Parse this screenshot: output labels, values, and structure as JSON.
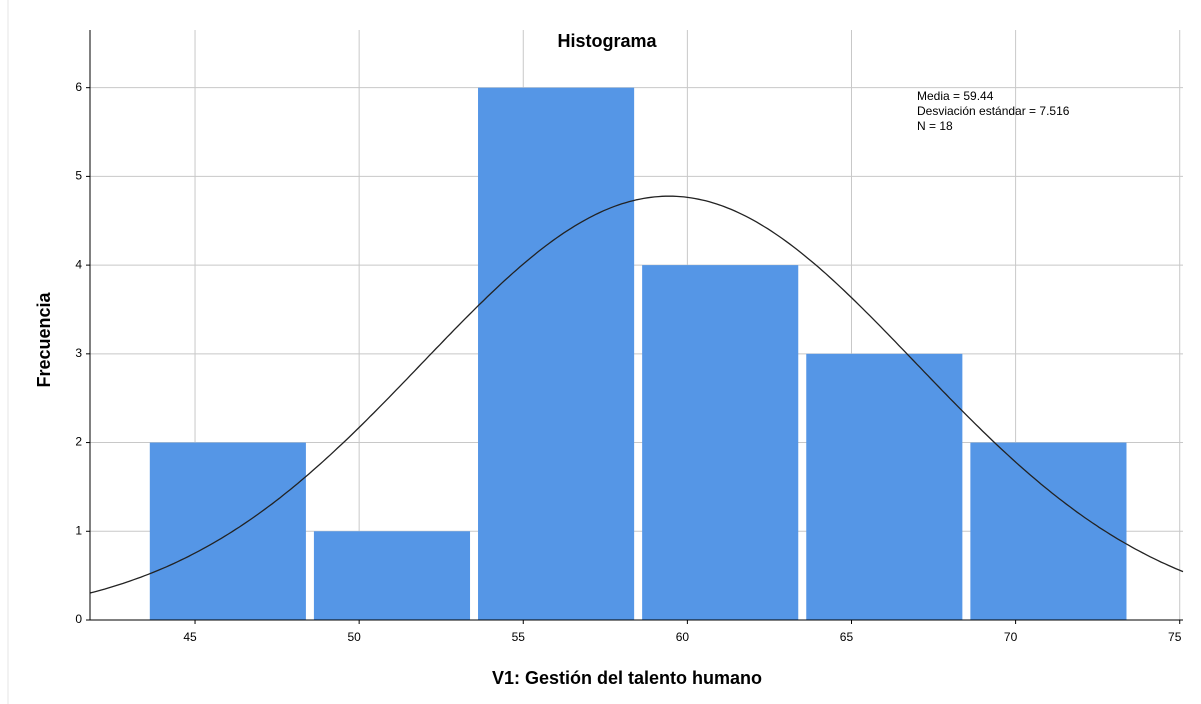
{
  "chart_data": {
    "type": "histogram",
    "title": "Histograma",
    "x_label": "V1: Gestión del talento humano",
    "y_label": "Frecuencia",
    "bins": [
      43.5,
      48.5,
      53.5,
      58.5,
      63.5,
      68.5,
      73.5
    ],
    "counts": [
      2,
      1,
      6,
      4,
      3,
      2
    ],
    "color": "#5596e6",
    "xlim": [
      41.8,
      75.1
    ],
    "xticks": [
      45,
      50,
      55,
      60,
      65,
      70,
      75
    ],
    "ylim": [
      0,
      6.65
    ],
    "yticks": [
      0,
      1,
      2,
      3,
      4,
      5,
      6
    ],
    "grid": true,
    "normal_curve": {
      "mean": 59.44,
      "sd": 7.516,
      "n": 18
    },
    "annotations": [
      "Media = 59.44",
      "Desviación estándar = 7.516",
      "N = 18"
    ]
  }
}
